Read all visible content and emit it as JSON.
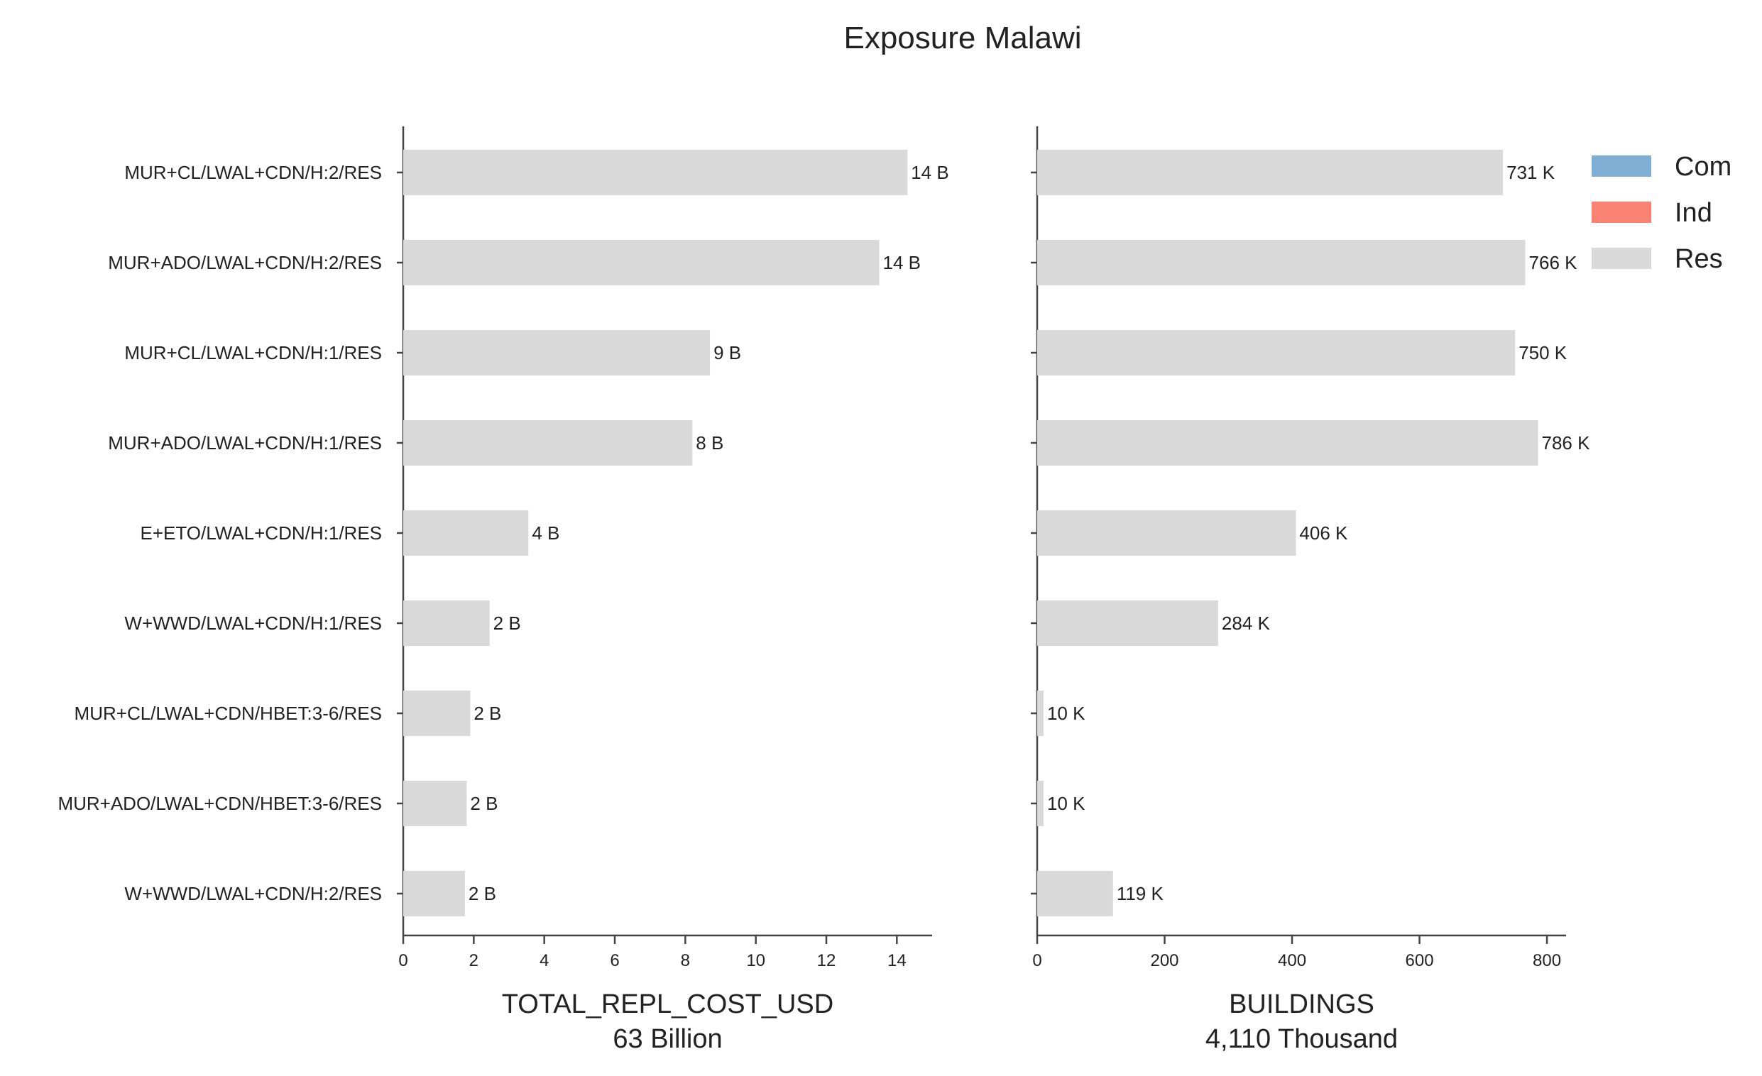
{
  "chart_data": {
    "type": "bar",
    "orientation": "horizontal",
    "title": "Exposure Malawi",
    "categories": [
      "MUR+CL/LWAL+CDN/H:2/RES",
      "MUR+ADO/LWAL+CDN/H:2/RES",
      "MUR+CL/LWAL+CDN/H:1/RES",
      "MUR+ADO/LWAL+CDN/H:1/RES",
      "E+ETO/LWAL+CDN/H:1/RES",
      "W+WWD/LWAL+CDN/H:1/RES",
      "MUR+CL/LWAL+CDN/HBET:3-6/RES",
      "MUR+ADO/LWAL+CDN/HBET:3-6/RES",
      "W+WWD/LWAL+CDN/H:2/RES"
    ],
    "legend": {
      "position": "top-right",
      "entries": [
        {
          "name": "Com",
          "color": "#7eaed4"
        },
        {
          "name": "Ind",
          "color": "#f98272"
        },
        {
          "name": "Res",
          "color": "#d9d9d9"
        }
      ]
    },
    "bar_color": "#d9d9d9",
    "panels": [
      {
        "xlabel": "TOTAL_REPL_COST_USD",
        "xlabel_sub": "63 Billion",
        "xlim": [
          0,
          15
        ],
        "ticks": [
          0,
          2,
          4,
          6,
          8,
          10,
          12,
          14
        ],
        "tick_labels": [
          "0",
          "2",
          "4",
          "6",
          "8",
          "10",
          "12",
          "14"
        ],
        "series": [
          {
            "name": "Res",
            "values": [
              14.3,
              13.5,
              8.7,
              8.2,
              3.55,
              2.45,
              1.9,
              1.8,
              1.75
            ]
          }
        ],
        "data_labels": [
          "14 B",
          "14 B",
          "9 B",
          "8 B",
          "4 B",
          "2 B",
          "2 B",
          "2 B",
          "2 B"
        ]
      },
      {
        "xlabel": "BUILDINGS",
        "xlabel_sub": "4,110 Thousand",
        "xlim": [
          0,
          830
        ],
        "ticks": [
          0,
          200,
          400,
          600,
          800
        ],
        "tick_labels": [
          "0",
          "200",
          "400",
          "600",
          "800"
        ],
        "series": [
          {
            "name": "Res",
            "values": [
              731,
              766,
              750,
              786,
              406,
              284,
              10,
              10,
              119
            ]
          }
        ],
        "data_labels": [
          "731 K",
          "766 K",
          "750 K",
          "786 K",
          "406 K",
          "284 K",
          "10 K",
          "10 K",
          "119 K"
        ]
      }
    ]
  }
}
